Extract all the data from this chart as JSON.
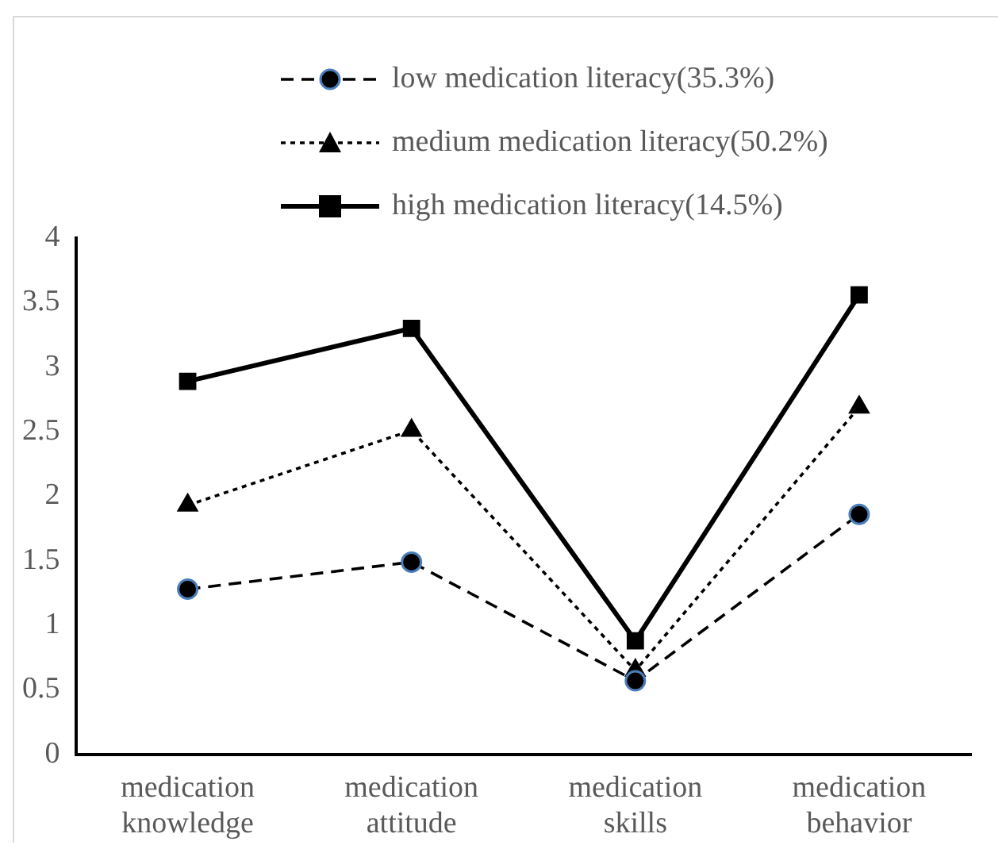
{
  "chart_data": {
    "type": "line",
    "categories": [
      "medication knowledge",
      "medication attitude",
      "medication skills",
      "medication behavior"
    ],
    "series": [
      {
        "name": "low medication literacy(35.3%)",
        "color": "#000000",
        "marker": "circle",
        "line_style": "dashed",
        "values": [
          1.28,
          1.49,
          0.57,
          1.86
        ]
      },
      {
        "name": "medium medication literacy(50.2%)",
        "color": "#000000",
        "marker": "triangle",
        "line_style": "dotted",
        "values": [
          1.93,
          2.51,
          0.65,
          2.69
        ]
      },
      {
        "name": "high medication literacy(14.5%)",
        "color": "#000000",
        "marker": "square",
        "line_style": "solid",
        "values": [
          2.89,
          3.3,
          0.88,
          3.56
        ]
      }
    ],
    "ylim": [
      0,
      4
    ],
    "yticks": [
      0,
      0.5,
      1,
      1.5,
      2,
      2.5,
      3,
      3.5,
      4
    ],
    "grid": false,
    "legend": "top"
  }
}
